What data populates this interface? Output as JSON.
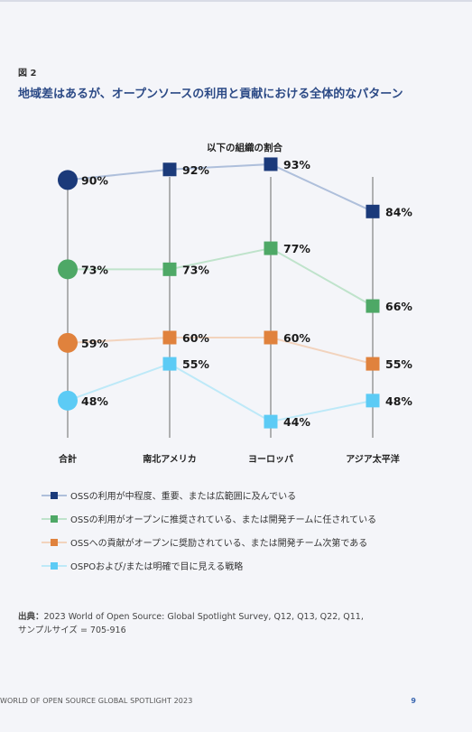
{
  "figure_label": "図 2",
  "title": "地域差はあるが、オープンソースの利用と貢献における全体的なパターン",
  "chart_data": {
    "type": "line",
    "title": "以下の組織の割合",
    "categories": [
      "合計",
      "南北アメリカ",
      "ヨーロッパ",
      "アジア太平洋"
    ],
    "series": [
      {
        "name": "OSSの利用が中程度、重要、または広範囲に及んでいる",
        "values": [
          90,
          92,
          93,
          84
        ],
        "color": "#1b3a7a",
        "line_color": "#aebfdb"
      },
      {
        "name": "OSSの利用がオープンに推奨されている、または開発チームに任されている",
        "values": [
          73,
          73,
          77,
          66
        ],
        "color": "#4ea866",
        "line_color": "#bfe3cb"
      },
      {
        "name": "OSSへの貢献がオープンに奨励されている、または開発チーム次第である",
        "values": [
          59,
          60,
          60,
          55
        ],
        "color": "#e0823d",
        "line_color": "#f2d3bd"
      },
      {
        "name": "OSPOおよび/または明確で目に見える戦略",
        "values": [
          48,
          55,
          44,
          48
        ],
        "color": "#5ccbf5",
        "line_color": "#bde9f8"
      }
    ],
    "value_suffix": "%",
    "xlabel": "",
    "ylabel": ""
  },
  "source": {
    "label": "出典：",
    "text": "2023 World of Open Source: Global Spotlight Survey, Q12, Q13, Q22, Q11,",
    "text2": "サンプルサイズ = 705-916"
  },
  "footer": {
    "left": "WORLD OF OPEN SOURCE GLOBAL SPOTLIGHT 2023",
    "page": "9"
  }
}
